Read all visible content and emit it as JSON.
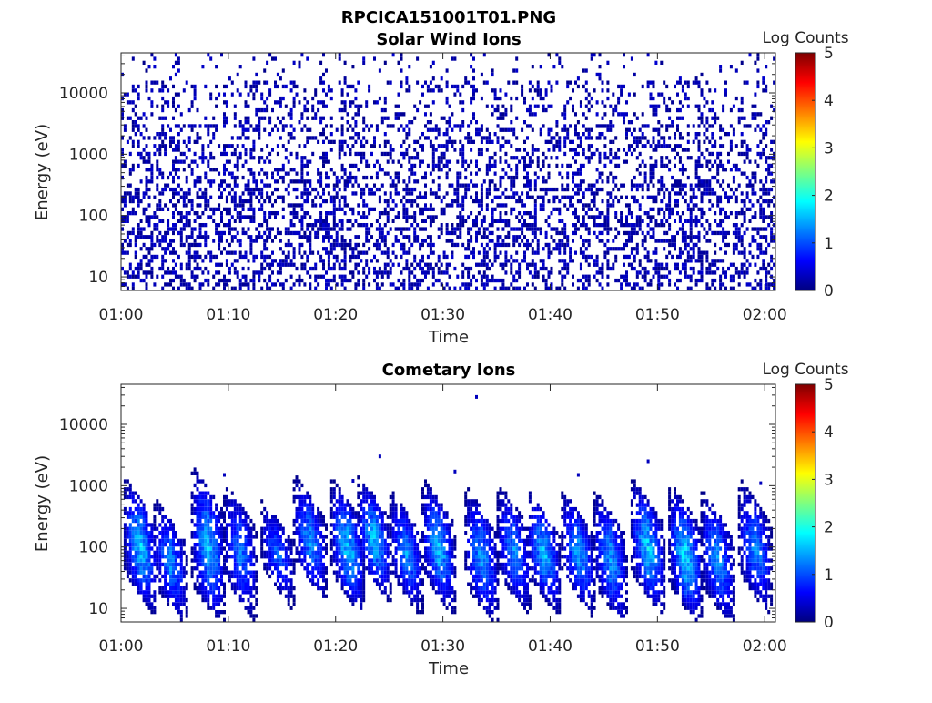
{
  "figure": {
    "title": "RPCICA151001T01.PNG"
  },
  "colormap": [
    "#00007f",
    "#0000ff",
    "#007fff",
    "#00ffff",
    "#7fff7f",
    "#ffff00",
    "#ff7f00",
    "#ff0000",
    "#7f0000"
  ],
  "chart_data": [
    {
      "type": "heatmap",
      "title": "Solar Wind Ions",
      "xlabel": "Time",
      "ylabel": "Energy (eV)",
      "y_scale": "log",
      "ylim": [
        6,
        45000
      ],
      "xlim": [
        "01:00",
        "02:01"
      ],
      "x_ticks": [
        "01:00",
        "01:10",
        "01:20",
        "01:30",
        "01:40",
        "01:50",
        "02:00"
      ],
      "y_ticks": [
        10,
        100,
        1000,
        10000
      ],
      "y_tick_labels": [
        "10",
        "100",
        "1000",
        "10000"
      ],
      "colorbar": {
        "label": "Log Counts",
        "range": [
          0,
          5
        ],
        "ticks": [
          "0",
          "1",
          "2",
          "3",
          "4",
          "5"
        ]
      },
      "grid": false,
      "pattern": "sparse",
      "note_values": "Sparse single-count (~0 log counts) detections spread over all energies and times"
    },
    {
      "type": "heatmap",
      "title": "Cometary Ions",
      "xlabel": "Time",
      "ylabel": "Energy (eV)",
      "y_scale": "log",
      "ylim": [
        6,
        45000
      ],
      "xlim": [
        "01:00",
        "02:01"
      ],
      "x_ticks": [
        "01:00",
        "01:10",
        "01:20",
        "01:30",
        "01:40",
        "01:50",
        "02:00"
      ],
      "y_ticks": [
        10,
        100,
        1000,
        10000
      ],
      "y_tick_labels": [
        "10",
        "100",
        "1000",
        "10000"
      ],
      "colorbar": {
        "label": "Log Counts",
        "range": [
          0,
          5
        ],
        "ticks": [
          "0",
          "1",
          "2",
          "3",
          "4",
          "5"
        ]
      },
      "grid": false,
      "pattern": "bursts",
      "bursts": [
        {
          "t": 1.7,
          "elo": 15,
          "ehi": 650,
          "peak": 1.9
        },
        {
          "t": 4.5,
          "elo": 10,
          "ehi": 300,
          "peak": 1.5
        },
        {
          "t": 8.0,
          "elo": 10,
          "ehi": 1000,
          "peak": 1.8
        },
        {
          "t": 11.0,
          "elo": 12,
          "ehi": 550,
          "peak": 1.4
        },
        {
          "t": 14.5,
          "elo": 20,
          "ehi": 300,
          "peak": 1.3
        },
        {
          "t": 17.5,
          "elo": 25,
          "ehi": 700,
          "peak": 1.6
        },
        {
          "t": 21.0,
          "elo": 15,
          "ehi": 600,
          "peak": 1.9
        },
        {
          "t": 23.5,
          "elo": 25,
          "ehi": 700,
          "peak": 1.8
        },
        {
          "t": 26.5,
          "elo": 15,
          "ehi": 400,
          "peak": 1.5
        },
        {
          "t": 29.5,
          "elo": 15,
          "ehi": 600,
          "peak": 1.8
        },
        {
          "t": 33.5,
          "elo": 10,
          "ehi": 450,
          "peak": 1.6
        },
        {
          "t": 36.5,
          "elo": 15,
          "ehi": 500,
          "peak": 1.5
        },
        {
          "t": 39.3,
          "elo": 15,
          "ehi": 400,
          "peak": 1.8
        },
        {
          "t": 42.5,
          "elo": 15,
          "ehi": 400,
          "peak": 1.7
        },
        {
          "t": 45.5,
          "elo": 10,
          "ehi": 400,
          "peak": 1.6
        },
        {
          "t": 49.0,
          "elo": 15,
          "ehi": 600,
          "peak": 1.9
        },
        {
          "t": 52.5,
          "elo": 10,
          "ehi": 500,
          "peak": 2.0
        },
        {
          "t": 55.5,
          "elo": 10,
          "ehi": 400,
          "peak": 1.6
        },
        {
          "t": 59.0,
          "elo": 15,
          "ehi": 600,
          "peak": 1.5
        }
      ]
    }
  ]
}
